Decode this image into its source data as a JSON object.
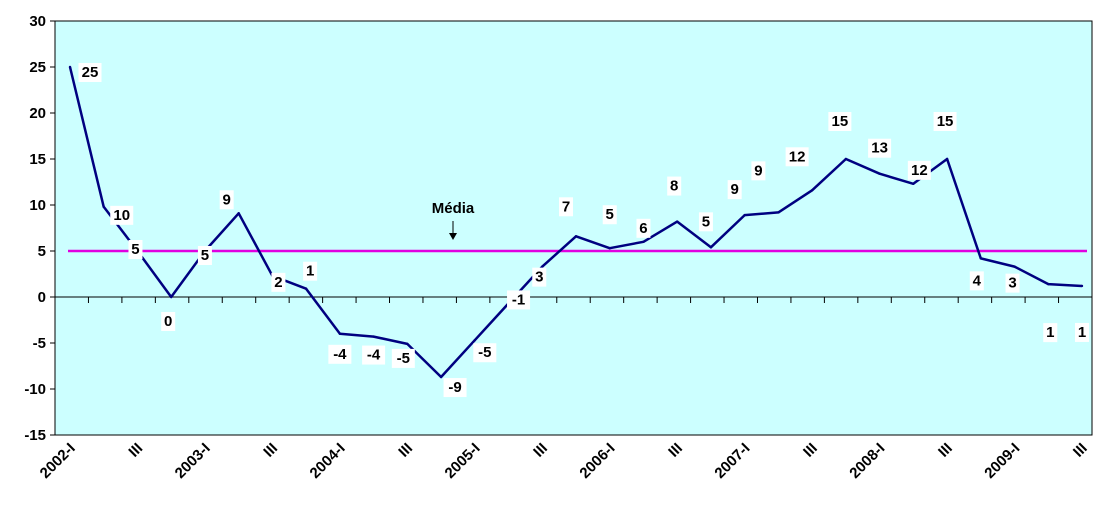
{
  "chart_data": {
    "type": "line",
    "title": "",
    "xlabel": "",
    "ylabel": "",
    "ylim": [
      -15,
      30
    ],
    "yticks": [
      -15,
      -10,
      -5,
      0,
      5,
      10,
      15,
      20,
      25,
      30
    ],
    "x_labels": [
      "2002-I",
      "III",
      "2003-I",
      "III",
      "2004-I",
      "III",
      "2005-I",
      "III",
      "2006-I",
      "III",
      "2007-I",
      "III",
      "2008-I",
      "III",
      "2009-I",
      "III"
    ],
    "series": [
      {
        "values": [
          25,
          9.8,
          5,
          0,
          5,
          9.1,
          2.3,
          0.9,
          -4,
          -4.3,
          -5.1,
          -8.7,
          -4.7,
          -0.7,
          3.3,
          6.6,
          5.3,
          6,
          8.2,
          5.4,
          8.9,
          9.2,
          11.6,
          15,
          13.4,
          12.3,
          15,
          4.2,
          3.3,
          1.4,
          1.2
        ],
        "labels": [
          "25",
          "10",
          "5",
          "0",
          "5",
          "9",
          "2",
          "1",
          "-4",
          "-4",
          "-5",
          "-9",
          "-5",
          "-1",
          "3",
          "7",
          "5",
          "6",
          "8",
          "5",
          "9",
          "9",
          "12",
          "15",
          "13",
          "12",
          "15",
          "4",
          "3",
          "1",
          "1"
        ],
        "color": "#000080"
      }
    ],
    "reference_line": {
      "value": 5,
      "label": "Média",
      "color": "#e000e0"
    },
    "background": "#ccffff",
    "grid": false,
    "legend": "none"
  }
}
